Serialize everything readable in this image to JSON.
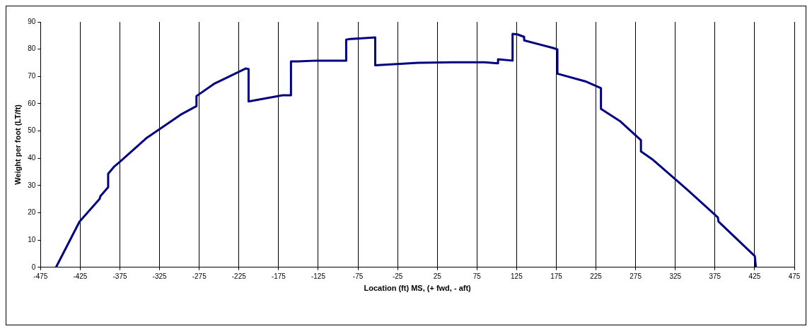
{
  "chart_data": {
    "type": "line",
    "xlabel": "Location (ft) MS, (+ fwd, - aft)",
    "ylabel": "Weight per foot (LT/ft)",
    "x": [
      -455.5,
      -426,
      -400.5,
      -399.6,
      -389.8,
      -389.8,
      -382,
      -374.6,
      -341,
      -298.3,
      -278.5,
      -278.5,
      -255.6,
      -216.5,
      -212.8,
      -212.8,
      -170,
      -159.4,
      -159.4,
      -150.2,
      -127.4,
      -89.8,
      -89.8,
      -84.6,
      -53.2,
      -53.2,
      0.8,
      43.6,
      84.8,
      101.6,
      101.6,
      119.9,
      119.9,
      126,
      134.5,
      134.5,
      170.2,
      176.4,
      176.4,
      211.5,
      231.3,
      231.3,
      255.8,
      281.7,
      281.7,
      297,
      341.2,
      378.7,
      379.4,
      425.2,
      426.6
    ],
    "series": [
      {
        "color": "#000080",
        "values": [
          0,
          16.7,
          25.1,
          26.1,
          29.4,
          34.3,
          37,
          38.8,
          47.5,
          56,
          59.1,
          62.8,
          67.4,
          72.9,
          72.7,
          60.8,
          63.1,
          63.1,
          75.5,
          75.5,
          75.8,
          75.8,
          83.5,
          83.7,
          84.3,
          74.1,
          75,
          75.2,
          75.2,
          74.8,
          76.3,
          75.8,
          85.6,
          85.4,
          84.5,
          83.2,
          80.5,
          79.9,
          71,
          68.2,
          65.7,
          58.1,
          53.5,
          46.6,
          42.5,
          39.4,
          28.2,
          18.3,
          16.8,
          4.1,
          0
        ]
      }
    ],
    "xlim": [
      -475,
      475
    ],
    "xticks": [
      -475,
      -425,
      -375,
      -325,
      -275,
      -225,
      -175,
      -125,
      -75,
      -25,
      25,
      75,
      125,
      175,
      225,
      275,
      325,
      375,
      425,
      475
    ],
    "ylim": [
      0,
      90
    ],
    "yticks": [
      0,
      10,
      20,
      30,
      40,
      50,
      60,
      70,
      80,
      90
    ],
    "grid": "x",
    "legend": false,
    "marker": "none",
    "line_style": "solid"
  }
}
